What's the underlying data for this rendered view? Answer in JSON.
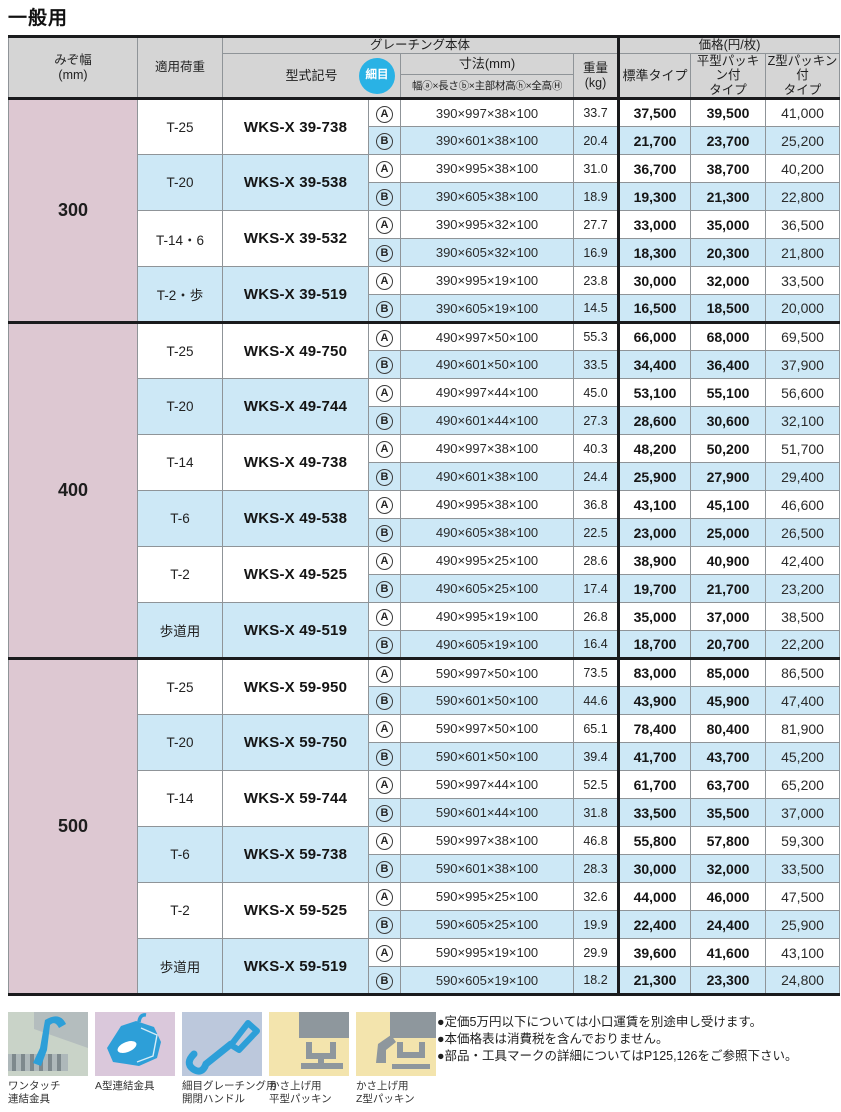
{
  "page_title": "一般用",
  "table": {
    "header": {
      "groove_width_line1": "みぞ幅",
      "groove_width_line2": "(mm)",
      "applied_load": "適用荷重",
      "grating_body": "グレーチング本体",
      "model_code": "型式記号",
      "fine_mesh_badge": "細目",
      "dimensions_title": "寸法(mm)",
      "dimensions_formula": "幅ⓐ×長さⓑ×主部材高ⓗ×全高Ⓗ",
      "weight_line1": "重量",
      "weight_line2": "(kg)",
      "price_group": "価格(円/枚)",
      "type_standard": "標準タイプ",
      "type_flat_line1": "平型パッキン付",
      "type_flat_line2": "タイプ",
      "type_z_line1": "Z型パッキン付",
      "type_z_line2": "タイプ"
    },
    "groups": [
      {
        "groove_width": "300",
        "rows": [
          {
            "load": "T-25",
            "model": "WKS-X 39-738",
            "variants": [
              {
                "mark": "A",
                "dimensions": "390×997×38×100",
                "weight": "33.7",
                "price_standard": "37,500",
                "price_flat": "39,500",
                "price_z": "41,000"
              },
              {
                "mark": "B",
                "dimensions": "390×601×38×100",
                "weight": "20.4",
                "price_standard": "21,700",
                "price_flat": "23,700",
                "price_z": "25,200"
              }
            ]
          },
          {
            "load": "T-20",
            "model": "WKS-X 39-538",
            "variants": [
              {
                "mark": "A",
                "dimensions": "390×995×38×100",
                "weight": "31.0",
                "price_standard": "36,700",
                "price_flat": "38,700",
                "price_z": "40,200"
              },
              {
                "mark": "B",
                "dimensions": "390×605×38×100",
                "weight": "18.9",
                "price_standard": "19,300",
                "price_flat": "21,300",
                "price_z": "22,800"
              }
            ]
          },
          {
            "load": "T-14・6",
            "model": "WKS-X 39-532",
            "variants": [
              {
                "mark": "A",
                "dimensions": "390×995×32×100",
                "weight": "27.7",
                "price_standard": "33,000",
                "price_flat": "35,000",
                "price_z": "36,500"
              },
              {
                "mark": "B",
                "dimensions": "390×605×32×100",
                "weight": "16.9",
                "price_standard": "18,300",
                "price_flat": "20,300",
                "price_z": "21,800"
              }
            ]
          },
          {
            "load": "T-2・歩",
            "model": "WKS-X 39-519",
            "variants": [
              {
                "mark": "A",
                "dimensions": "390×995×19×100",
                "weight": "23.8",
                "price_standard": "30,000",
                "price_flat": "32,000",
                "price_z": "33,500"
              },
              {
                "mark": "B",
                "dimensions": "390×605×19×100",
                "weight": "14.5",
                "price_standard": "16,500",
                "price_flat": "18,500",
                "price_z": "20,000"
              }
            ]
          }
        ]
      },
      {
        "groove_width": "400",
        "rows": [
          {
            "load": "T-25",
            "model": "WKS-X 49-750",
            "variants": [
              {
                "mark": "A",
                "dimensions": "490×997×50×100",
                "weight": "55.3",
                "price_standard": "66,000",
                "price_flat": "68,000",
                "price_z": "69,500"
              },
              {
                "mark": "B",
                "dimensions": "490×601×50×100",
                "weight": "33.5",
                "price_standard": "34,400",
                "price_flat": "36,400",
                "price_z": "37,900"
              }
            ]
          },
          {
            "load": "T-20",
            "model": "WKS-X 49-744",
            "variants": [
              {
                "mark": "A",
                "dimensions": "490×997×44×100",
                "weight": "45.0",
                "price_standard": "53,100",
                "price_flat": "55,100",
                "price_z": "56,600"
              },
              {
                "mark": "B",
                "dimensions": "490×601×44×100",
                "weight": "27.3",
                "price_standard": "28,600",
                "price_flat": "30,600",
                "price_z": "32,100"
              }
            ]
          },
          {
            "load": "T-14",
            "model": "WKS-X 49-738",
            "variants": [
              {
                "mark": "A",
                "dimensions": "490×997×38×100",
                "weight": "40.3",
                "price_standard": "48,200",
                "price_flat": "50,200",
                "price_z": "51,700"
              },
              {
                "mark": "B",
                "dimensions": "490×601×38×100",
                "weight": "24.4",
                "price_standard": "25,900",
                "price_flat": "27,900",
                "price_z": "29,400"
              }
            ]
          },
          {
            "load": "T-6",
            "model": "WKS-X 49-538",
            "variants": [
              {
                "mark": "A",
                "dimensions": "490×995×38×100",
                "weight": "36.8",
                "price_standard": "43,100",
                "price_flat": "45,100",
                "price_z": "46,600"
              },
              {
                "mark": "B",
                "dimensions": "490×605×38×100",
                "weight": "22.5",
                "price_standard": "23,000",
                "price_flat": "25,000",
                "price_z": "26,500"
              }
            ]
          },
          {
            "load": "T-2",
            "model": "WKS-X 49-525",
            "variants": [
              {
                "mark": "A",
                "dimensions": "490×995×25×100",
                "weight": "28.6",
                "price_standard": "38,900",
                "price_flat": "40,900",
                "price_z": "42,400"
              },
              {
                "mark": "B",
                "dimensions": "490×605×25×100",
                "weight": "17.4",
                "price_standard": "19,700",
                "price_flat": "21,700",
                "price_z": "23,200"
              }
            ]
          },
          {
            "load": "歩道用",
            "model": "WKS-X 49-519",
            "variants": [
              {
                "mark": "A",
                "dimensions": "490×995×19×100",
                "weight": "26.8",
                "price_standard": "35,000",
                "price_flat": "37,000",
                "price_z": "38,500"
              },
              {
                "mark": "B",
                "dimensions": "490×605×19×100",
                "weight": "16.4",
                "price_standard": "18,700",
                "price_flat": "20,700",
                "price_z": "22,200"
              }
            ]
          }
        ]
      },
      {
        "groove_width": "500",
        "rows": [
          {
            "load": "T-25",
            "model": "WKS-X 59-950",
            "variants": [
              {
                "mark": "A",
                "dimensions": "590×997×50×100",
                "weight": "73.5",
                "price_standard": "83,000",
                "price_flat": "85,000",
                "price_z": "86,500"
              },
              {
                "mark": "B",
                "dimensions": "590×601×50×100",
                "weight": "44.6",
                "price_standard": "43,900",
                "price_flat": "45,900",
                "price_z": "47,400"
              }
            ]
          },
          {
            "load": "T-20",
            "model": "WKS-X 59-750",
            "variants": [
              {
                "mark": "A",
                "dimensions": "590×997×50×100",
                "weight": "65.1",
                "price_standard": "78,400",
                "price_flat": "80,400",
                "price_z": "81,900"
              },
              {
                "mark": "B",
                "dimensions": "590×601×50×100",
                "weight": "39.4",
                "price_standard": "41,700",
                "price_flat": "43,700",
                "price_z": "45,200"
              }
            ]
          },
          {
            "load": "T-14",
            "model": "WKS-X 59-744",
            "variants": [
              {
                "mark": "A",
                "dimensions": "590×997×44×100",
                "weight": "52.5",
                "price_standard": "61,700",
                "price_flat": "63,700",
                "price_z": "65,200"
              },
              {
                "mark": "B",
                "dimensions": "590×601×44×100",
                "weight": "31.8",
                "price_standard": "33,500",
                "price_flat": "35,500",
                "price_z": "37,000"
              }
            ]
          },
          {
            "load": "T-6",
            "model": "WKS-X 59-738",
            "variants": [
              {
                "mark": "A",
                "dimensions": "590×997×38×100",
                "weight": "46.8",
                "price_standard": "55,800",
                "price_flat": "57,800",
                "price_z": "59,300"
              },
              {
                "mark": "B",
                "dimensions": "590×601×38×100",
                "weight": "28.3",
                "price_standard": "30,000",
                "price_flat": "32,000",
                "price_z": "33,500"
              }
            ]
          },
          {
            "load": "T-2",
            "model": "WKS-X 59-525",
            "variants": [
              {
                "mark": "A",
                "dimensions": "590×995×25×100",
                "weight": "32.6",
                "price_standard": "44,000",
                "price_flat": "46,000",
                "price_z": "47,500"
              },
              {
                "mark": "B",
                "dimensions": "590×605×25×100",
                "weight": "19.9",
                "price_standard": "22,400",
                "price_flat": "24,400",
                "price_z": "25,900"
              }
            ]
          },
          {
            "load": "歩道用",
            "model": "WKS-X 59-519",
            "variants": [
              {
                "mark": "A",
                "dimensions": "590×995×19×100",
                "weight": "29.9",
                "price_standard": "39,600",
                "price_flat": "41,600",
                "price_z": "43,100"
              },
              {
                "mark": "B",
                "dimensions": "590×605×19×100",
                "weight": "18.2",
                "price_standard": "21,300",
                "price_flat": "23,300",
                "price_z": "24,800"
              }
            ]
          }
        ]
      }
    ]
  },
  "legend": {
    "items": [
      {
        "icon": "one-touch-connector-icon",
        "label_line1": "ワンタッチ",
        "label_line2": "連結金具"
      },
      {
        "icon": "a-type-connector-icon",
        "label_line1": "A型連結金具",
        "label_line2": ""
      },
      {
        "icon": "fine-grating-handle-icon",
        "label_line1": "細目グレーチング用",
        "label_line2": "開閉ハンドル"
      },
      {
        "icon": "raising-flat-packing-icon",
        "label_line1": "かさ上げ用",
        "label_line2": "平型パッキン"
      },
      {
        "icon": "raising-z-packing-icon",
        "label_line1": "かさ上げ用",
        "label_line2": "Z型パッキン"
      }
    ]
  },
  "notes": [
    "●定価5万円以下については小口運賃を別途申し受けます。",
    "●本価格表は消費税を含んでおりません。",
    "●部品・工具マークの詳細についてはP125,126をご参照下さい。"
  ],
  "colors": {
    "header_gray": "#d5d5d5",
    "pink": "#ddc8d2",
    "blue_row": "#cde8f6",
    "badge_blue": "#29b2e5",
    "border_gray": "#8f9498",
    "border_dark": "#1a1b1d",
    "icon_blue": "#2d9fd8",
    "legend_bg_green": "#c9d3c8",
    "legend_bg_pink": "#dac8db",
    "legend_bg_blue": "#bcc8dc",
    "legend_bg_yellow": "#f3e4ad",
    "legend_gray": "#8e979d"
  }
}
